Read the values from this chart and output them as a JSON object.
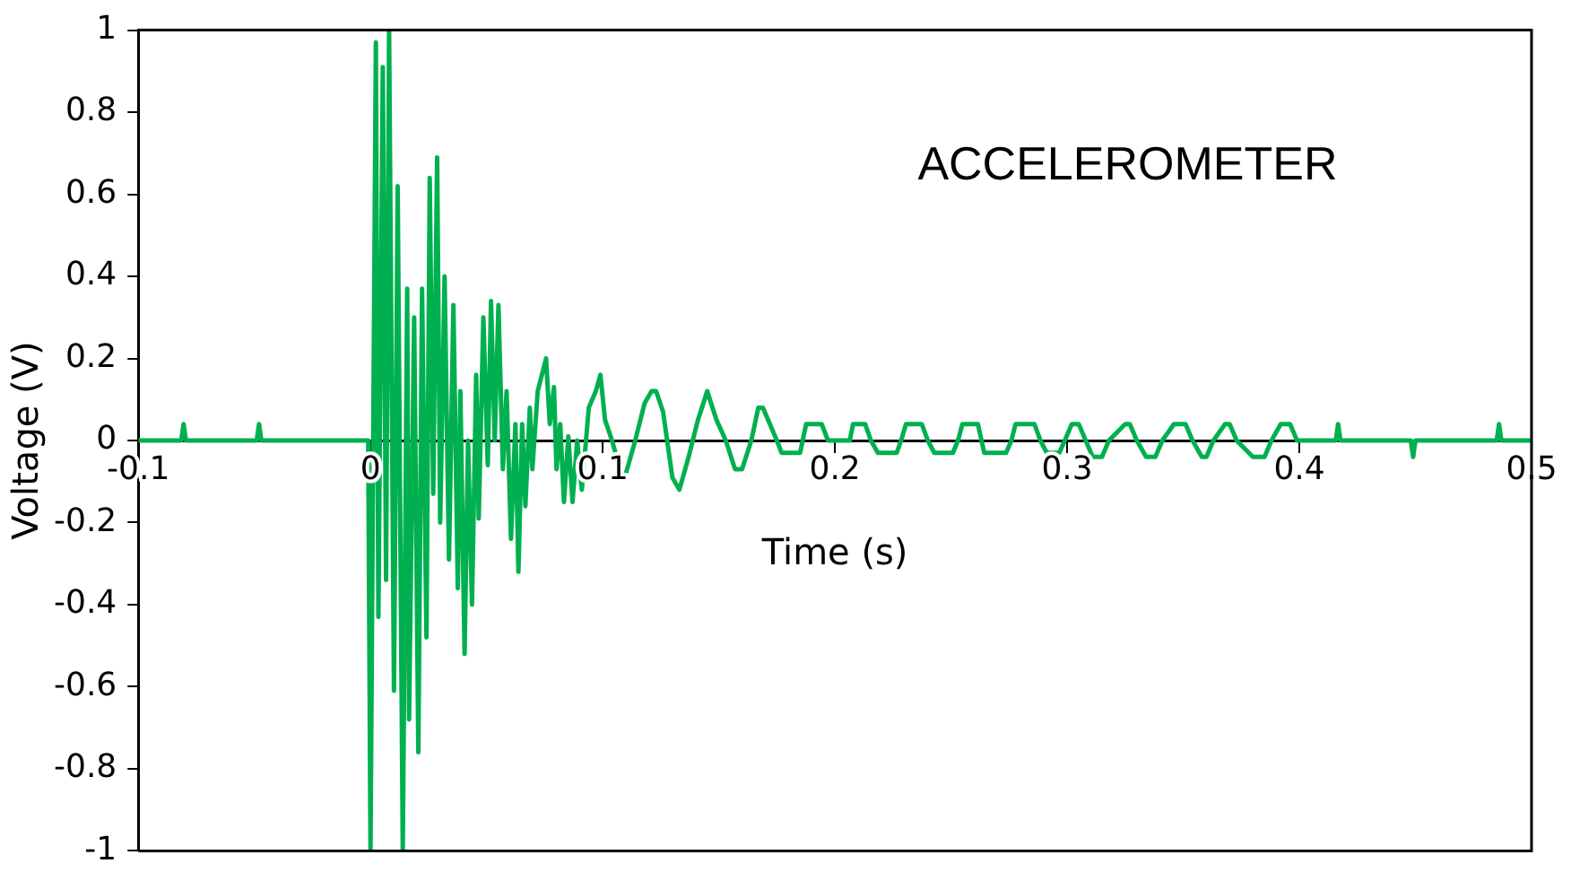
{
  "chart_data": {
    "type": "line",
    "xlabel": "Time (s)",
    "ylabel": "Voltage (V)",
    "annotations": [
      "ACCELEROMETER"
    ],
    "xlim": [
      -0.1,
      0.5
    ],
    "xticks": [
      -0.1,
      0,
      0.1,
      0.2,
      0.3,
      0.4,
      0.5
    ],
    "ylim": [
      -1,
      1
    ],
    "yticks": [
      -1,
      -0.8,
      -0.6,
      -0.4,
      -0.2,
      0,
      0.2,
      0.4,
      0.6,
      0.8,
      1
    ],
    "marker": "none",
    "line_style": "solid",
    "legend": false,
    "series": [
      {
        "color": "#00b050",
        "x": [
          -0.1,
          -0.0815,
          -0.0805,
          -0.0795,
          -0.049,
          -0.048,
          -0.047,
          -0.001,
          0.0,
          0.0023,
          0.0034,
          0.0053,
          0.0067,
          0.008,
          0.0101,
          0.0117,
          0.0139,
          0.0158,
          0.0166,
          0.0188,
          0.0206,
          0.0222,
          0.0241,
          0.0255,
          0.027,
          0.0287,
          0.03,
          0.0319,
          0.0338,
          0.0357,
          0.0376,
          0.0387,
          0.0405,
          0.042,
          0.0437,
          0.0455,
          0.0466,
          0.0486,
          0.0505,
          0.0519,
          0.0535,
          0.0551,
          0.057,
          0.0586,
          0.0605,
          0.0624,
          0.0637,
          0.0653,
          0.0667,
          0.0686,
          0.0697,
          0.072,
          0.0756,
          0.0772,
          0.079,
          0.0801,
          0.0817,
          0.0833,
          0.0852,
          0.087,
          0.089,
          0.091,
          0.094,
          0.097,
          0.099,
          0.101,
          0.104,
          0.108,
          0.11,
          0.114,
          0.118,
          0.121,
          0.123,
          0.126,
          0.13,
          0.133,
          0.137,
          0.141,
          0.145,
          0.149,
          0.153,
          0.157,
          0.16,
          0.164,
          0.167,
          0.169,
          0.172,
          0.175,
          0.177,
          0.185,
          0.1876,
          0.1943,
          0.197,
          0.2064,
          0.2078,
          0.213,
          0.2155,
          0.2185,
          0.2266,
          0.2285,
          0.2306,
          0.2374,
          0.24,
          0.2428,
          0.2508,
          0.253,
          0.2549,
          0.2616,
          0.2643,
          0.2737,
          0.276,
          0.2778,
          0.2859,
          0.2885,
          0.2912,
          0.2966,
          0.299,
          0.302,
          0.305,
          0.308,
          0.311,
          0.315,
          0.318,
          0.325,
          0.327,
          0.33,
          0.334,
          0.338,
          0.341,
          0.346,
          0.351,
          0.354,
          0.358,
          0.36,
          0.363,
          0.368,
          0.37,
          0.373,
          0.38,
          0.385,
          0.388,
          0.392,
          0.396,
          0.399,
          0.4157,
          0.4167,
          0.4177,
          0.448,
          0.449,
          0.45,
          0.485,
          0.486,
          0.487,
          0.5
        ],
        "values": [
          0,
          0,
          0.04,
          0,
          0,
          0.04,
          0,
          0,
          -1,
          0.97,
          -0.43,
          0.91,
          -0.34,
          1,
          -0.61,
          0.62,
          -1,
          0.37,
          -0.68,
          0.3,
          -0.76,
          0.37,
          -0.48,
          0.64,
          -0.13,
          0.69,
          -0.2,
          0.4,
          -0.29,
          0.33,
          -0.36,
          0.12,
          -0.52,
          0,
          -0.4,
          0.16,
          -0.19,
          0.3,
          -0.06,
          0.34,
          0,
          0.33,
          -0.07,
          0.12,
          -0.24,
          0.04,
          -0.32,
          0.04,
          -0.16,
          0.08,
          -0.07,
          0.12,
          0.2,
          0.04,
          0.13,
          -0.07,
          0.04,
          -0.15,
          0.01,
          -0.15,
          0,
          -0.12,
          0.08,
          0.12,
          0.16,
          0.05,
          0,
          -0.08,
          -0.08,
          0,
          0.09,
          0.12,
          0.12,
          0.07,
          -0.09,
          -0.12,
          -0.04,
          0.05,
          0.12,
          0.05,
          0,
          -0.07,
          -0.07,
          0,
          0.08,
          0.08,
          0.04,
          0,
          -0.03,
          -0.03,
          0.04,
          0.04,
          0,
          0,
          0.04,
          0.04,
          0,
          -0.03,
          -0.03,
          0,
          0.04,
          0.04,
          0,
          -0.03,
          -0.03,
          0,
          0.04,
          0.04,
          -0.03,
          -0.03,
          0,
          0.04,
          0.04,
          0,
          -0.03,
          -0.03,
          0,
          0.04,
          0.04,
          0,
          -0.04,
          -0.04,
          0,
          0.04,
          0.04,
          0,
          -0.04,
          -0.04,
          0,
          0.04,
          0.04,
          0,
          -0.04,
          -0.04,
          0,
          0.04,
          0.04,
          0,
          -0.04,
          -0.04,
          0,
          0.04,
          0.04,
          0,
          0,
          0.04,
          0,
          0,
          -0.04,
          0,
          0,
          0.04,
          0,
          0
        ]
      }
    ]
  }
}
